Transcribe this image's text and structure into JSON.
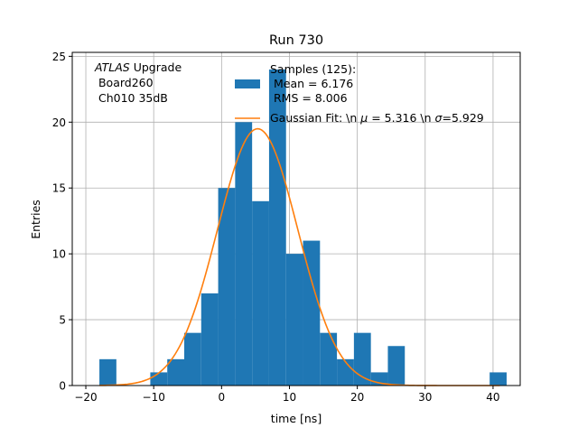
{
  "chart_data": {
    "type": "bar",
    "title": "Run 730",
    "xlabel": "time [ns]",
    "ylabel": "Entries",
    "xlim": [
      -22,
      44
    ],
    "ylim": [
      0,
      25.3
    ],
    "xticks": [
      -20,
      -10,
      0,
      10,
      20,
      30,
      40
    ],
    "yticks": [
      0,
      5,
      10,
      15,
      20,
      25
    ],
    "grid": true,
    "annotation": {
      "italic": "ATLAS",
      "line1_rest": " Upgrade",
      "line2": " Board260",
      "line3": " Ch010 35dB"
    },
    "histogram": {
      "name": "Samples (125):",
      "legend_line2": " Mean = 6.176",
      "legend_line3": " RMS = 8.006",
      "color": "#1f77b4",
      "bin_width": 2.5,
      "bins": [
        {
          "x": -18,
          "y": 2
        },
        {
          "x": -15.5,
          "y": 0
        },
        {
          "x": -13,
          "y": 0
        },
        {
          "x": -10.5,
          "y": 1
        },
        {
          "x": -8,
          "y": 2
        },
        {
          "x": -5.5,
          "y": 4
        },
        {
          "x": -3,
          "y": 7
        },
        {
          "x": -0.5,
          "y": 15
        },
        {
          "x": 2,
          "y": 20
        },
        {
          "x": 4.5,
          "y": 14
        },
        {
          "x": 7,
          "y": 24
        },
        {
          "x": 9.5,
          "y": 10
        },
        {
          "x": 12,
          "y": 11
        },
        {
          "x": 14.5,
          "y": 4
        },
        {
          "x": 17,
          "y": 2
        },
        {
          "x": 19.5,
          "y": 4
        },
        {
          "x": 22,
          "y": 1
        },
        {
          "x": 24.5,
          "y": 3
        },
        {
          "x": 27,
          "y": 0
        },
        {
          "x": 29.5,
          "y": 0
        },
        {
          "x": 32,
          "y": 0
        },
        {
          "x": 34.5,
          "y": 0
        },
        {
          "x": 37,
          "y": 0
        },
        {
          "x": 39.5,
          "y": 1
        }
      ]
    },
    "fit": {
      "name": "Gaussian Fit: \\n $\\mu$ = 5.316 \\n $\\sigma$=5.929",
      "legend_prefix": "Gaussian Fit: \\n ",
      "legend_mu": "μ",
      "legend_mid": " = 5.316 \\n ",
      "legend_sigma": "σ",
      "legend_suffix": "=5.929",
      "color": "#ff7f0e",
      "mu": 5.316,
      "sigma": 5.929,
      "amplitude": 19.5,
      "x_range": [
        -18,
        41
      ]
    }
  }
}
